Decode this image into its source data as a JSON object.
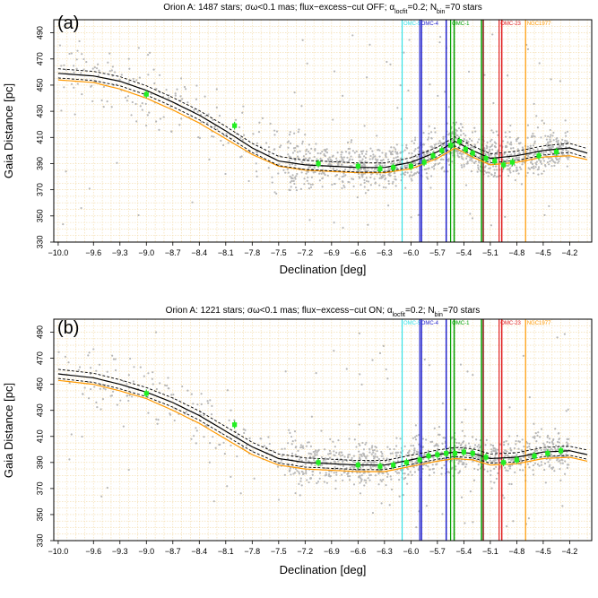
{
  "chart_data": [
    {
      "type": "scatter",
      "panel": "(a)",
      "title": "Orion A: 1487 stars; σω<0.1 mas; flux−excess−cut OFF; α",
      "title_sub": "locfit",
      "title_mid": "=0.2; N",
      "title_sub2": "bin",
      "title_end": "=70 stars",
      "xlabel": "Declination [deg]",
      "ylabel": "Gaia Distance  [pc]",
      "xlim": [
        -10.05,
        -3.95
      ],
      "ylim": [
        330,
        500
      ],
      "x_ticks": [
        -10.0,
        -9.6,
        -9.3,
        -9.0,
        -8.7,
        -8.4,
        -8.1,
        -7.8,
        -7.5,
        -7.2,
        -6.9,
        -6.6,
        -6.3,
        -6.0,
        -5.7,
        -5.4,
        -5.1,
        -4.8,
        -4.5,
        -4.2
      ],
      "y_ticks": [
        330,
        350,
        370,
        390,
        410,
        430,
        450,
        470,
        490
      ],
      "grid": true,
      "scatter_color": "#b8b8b8",
      "regions": [
        {
          "name": "OMC-5",
          "x": -6.1,
          "color": "#33e0e6"
        },
        {
          "name": "OMC-4",
          "x": -5.9,
          "color": "#2222cc"
        },
        {
          "name": "OMC-1",
          "x": -5.55,
          "color": "#00a000"
        },
        {
          "name": "OMC-23",
          "x": -5.0,
          "color": "#e02020"
        },
        {
          "name": "NGC1977",
          "x": -4.7,
          "color": "#ff9900"
        }
      ],
      "extra_lines": [
        {
          "x": -5.88,
          "color": "#2222cc"
        },
        {
          "x": -5.6,
          "color": "#2222cc"
        },
        {
          "x": -5.51,
          "color": "#00a000"
        },
        {
          "x": -5.2,
          "color": "#00a000"
        },
        {
          "x": -5.18,
          "color": "#8b1a1a"
        },
        {
          "x": -4.97,
          "color": "#e02020"
        }
      ],
      "fit_black": {
        "x": [
          -10.0,
          -9.6,
          -9.3,
          -9.0,
          -8.7,
          -8.4,
          -8.1,
          -7.8,
          -7.5,
          -7.2,
          -6.9,
          -6.6,
          -6.3,
          -6.0,
          -5.7,
          -5.5,
          -5.3,
          -5.1,
          -4.8,
          -4.5,
          -4.2,
          -4.0
        ],
        "y": [
          459,
          457,
          453,
          446,
          437,
          427,
          415,
          402,
          392,
          389,
          388,
          387,
          387,
          391,
          399,
          407,
          400,
          394,
          396,
          400,
          402,
          398
        ]
      },
      "fit_orange": {
        "x": [
          -10.0,
          -9.6,
          -9.3,
          -9.0,
          -8.7,
          -8.4,
          -8.1,
          -7.8,
          -7.5,
          -7.2,
          -6.9,
          -6.6,
          -6.3,
          -6.0,
          -5.7,
          -5.5,
          -5.3,
          -5.1,
          -4.8,
          -4.5,
          -4.2,
          -4.0
        ],
        "y": [
          454,
          452,
          447,
          440,
          431,
          421,
          409,
          397,
          388,
          385,
          384,
          383,
          383,
          386,
          394,
          402,
          395,
          389,
          391,
          395,
          396,
          393
        ]
      },
      "bins": {
        "x": [
          -9.0,
          -8.0,
          -7.05,
          -6.6,
          -6.35,
          -6.2,
          -6.0,
          -5.85,
          -5.75,
          -5.65,
          -5.55,
          -5.45,
          -5.38,
          -5.3,
          -5.15,
          -5.05,
          -4.95,
          -4.85,
          -4.55,
          -4.35
        ],
        "y": [
          443,
          419,
          390,
          388,
          386,
          387,
          388,
          391,
          396,
          400,
          404,
          407,
          401,
          398,
          394,
          392,
          389,
          391,
          396,
          399
        ]
      }
    },
    {
      "type": "scatter",
      "panel": "(b)",
      "title": "Orion A: 1221 stars; σω<0.1 mas; flux−excess−cut ON; α",
      "title_sub": "locfit",
      "title_mid": "=0.2; N",
      "title_sub2": "bin",
      "title_end": "=70 stars",
      "xlabel": "Declination [deg]",
      "ylabel": "Gaia Distance  [pc]",
      "xlim": [
        -10.05,
        -3.95
      ],
      "ylim": [
        330,
        500
      ],
      "x_ticks": [
        -10.0,
        -9.6,
        -9.3,
        -9.0,
        -8.7,
        -8.4,
        -8.1,
        -7.8,
        -7.5,
        -7.2,
        -6.9,
        -6.6,
        -6.3,
        -6.0,
        -5.7,
        -5.4,
        -5.1,
        -4.8,
        -4.5,
        -4.2
      ],
      "y_ticks": [
        330,
        350,
        370,
        390,
        410,
        430,
        450,
        470,
        490
      ],
      "grid": true,
      "scatter_color": "#b8b8b8",
      "regions": [
        {
          "name": "OMC-5",
          "x": -6.1,
          "color": "#33e0e6"
        },
        {
          "name": "OMC-4",
          "x": -5.9,
          "color": "#2222cc"
        },
        {
          "name": "OMC-1",
          "x": -5.55,
          "color": "#00a000"
        },
        {
          "name": "OMC-23",
          "x": -5.0,
          "color": "#e02020"
        },
        {
          "name": "NGC1977",
          "x": -4.7,
          "color": "#ff9900"
        }
      ],
      "extra_lines": [
        {
          "x": -5.88,
          "color": "#2222cc"
        },
        {
          "x": -5.6,
          "color": "#2222cc"
        },
        {
          "x": -5.51,
          "color": "#00a000"
        },
        {
          "x": -5.2,
          "color": "#00a000"
        },
        {
          "x": -5.18,
          "color": "#8b1a1a"
        },
        {
          "x": -4.97,
          "color": "#e02020"
        }
      ],
      "fit_black": {
        "x": [
          -10.0,
          -9.6,
          -9.3,
          -9.0,
          -8.7,
          -8.4,
          -8.1,
          -7.8,
          -7.5,
          -7.2,
          -6.9,
          -6.6,
          -6.3,
          -6.0,
          -5.7,
          -5.5,
          -5.3,
          -5.1,
          -4.8,
          -4.5,
          -4.2,
          -4.0
        ],
        "y": [
          458,
          455,
          450,
          444,
          436,
          426,
          414,
          402,
          393,
          390,
          389,
          388,
          388,
          392,
          396,
          398,
          397,
          393,
          394,
          398,
          399,
          396
        ]
      },
      "fit_orange": {
        "x": [
          -10.0,
          -9.6,
          -9.3,
          -9.0,
          -8.7,
          -8.4,
          -8.1,
          -7.8,
          -7.5,
          -7.2,
          -6.9,
          -6.6,
          -6.3,
          -6.0,
          -5.7,
          -5.5,
          -5.3,
          -5.1,
          -4.8,
          -4.5,
          -4.2,
          -4.0
        ],
        "y": [
          453,
          450,
          445,
          439,
          430,
          420,
          408,
          396,
          388,
          385,
          384,
          383,
          383,
          387,
          391,
          393,
          392,
          388,
          389,
          393,
          394,
          391
        ]
      },
      "bins": {
        "x": [
          -9.0,
          -8.0,
          -7.05,
          -6.6,
          -6.35,
          -6.2,
          -6.05,
          -5.9,
          -5.8,
          -5.7,
          -5.6,
          -5.5,
          -5.4,
          -5.3,
          -5.15,
          -4.95,
          -4.8,
          -4.6,
          -4.45,
          -4.3
        ],
        "y": [
          443,
          419,
          390,
          388,
          387,
          388,
          390,
          392,
          395,
          396,
          397,
          397,
          398,
          397,
          394,
          390,
          392,
          395,
          397,
          399
        ]
      }
    }
  ]
}
